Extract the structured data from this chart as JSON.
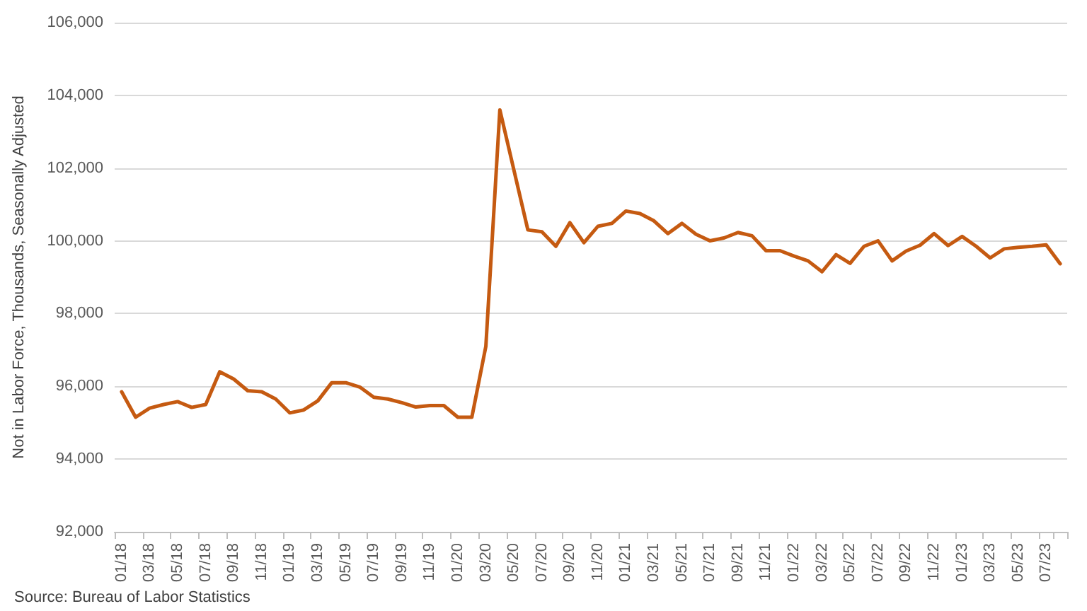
{
  "chart_data": {
    "type": "line",
    "ylabel": "Not in Labor Force, Thousands, Seasonally Adjusted",
    "annotations": [
      "Source: Bureau of Labor Statistics"
    ],
    "categories": [
      "01/18",
      null,
      "03/18",
      null,
      "05/18",
      null,
      "07/18",
      null,
      "09/18",
      null,
      "11/18",
      null,
      "01/19",
      null,
      "03/19",
      null,
      "05/19",
      null,
      "07/19",
      null,
      "09/19",
      null,
      "11/19",
      null,
      "01/20",
      null,
      "03/20",
      null,
      "05/20",
      null,
      "07/20",
      null,
      "09/20",
      null,
      "11/20",
      null,
      "01/21",
      null,
      "03/21",
      null,
      "05/21",
      null,
      "07/21",
      null,
      "09/21",
      null,
      "11/21",
      null,
      "01/22",
      null,
      "03/22",
      null,
      "05/22",
      null,
      "07/22",
      null,
      "09/22",
      null,
      "11/22",
      null,
      "01/23",
      null,
      "03/23",
      null,
      "05/23",
      null,
      "07/23",
      null
    ],
    "series": [
      {
        "color": "#c55a11",
        "values": [
          95850,
          95150,
          95400,
          95500,
          95580,
          95420,
          95500,
          96400,
          96200,
          95880,
          95850,
          95650,
          95270,
          95350,
          95600,
          96100,
          96100,
          95980,
          95700,
          95650,
          95550,
          95430,
          95470,
          95470,
          95150,
          95150,
          97100,
          103600,
          101950,
          100300,
          100250,
          99850,
          100500,
          99950,
          100400,
          100480,
          100820,
          100750,
          100550,
          100200,
          100480,
          100180,
          100000,
          100080,
          100230,
          100140,
          99730,
          99730,
          99580,
          99450,
          99150,
          99620,
          99380,
          99850,
          100000,
          99450,
          99720,
          99880,
          100200,
          99870,
          100120,
          99850,
          99530,
          99780,
          99820,
          99850,
          99890,
          99370
        ]
      }
    ],
    "ylim": [
      92000,
      106000
    ],
    "yticks": [
      {
        "value": 92000,
        "label": "92,000"
      },
      {
        "value": 94000,
        "label": "94,000"
      },
      {
        "value": 96000,
        "label": "96,000"
      },
      {
        "value": 98000,
        "label": "98,000"
      },
      {
        "value": 100000,
        "label": "100,000"
      },
      {
        "value": 102000,
        "label": "102,000"
      },
      {
        "value": 104000,
        "label": "104,000"
      },
      {
        "value": 106000,
        "label": "106,000"
      }
    ],
    "grid": "y",
    "marker": "none",
    "line_style": "solid"
  }
}
